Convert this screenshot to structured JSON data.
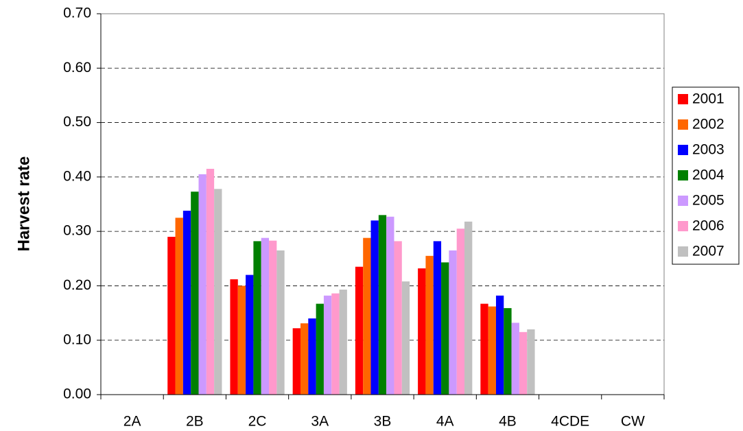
{
  "chart_data": {
    "type": "bar",
    "y_label": "Harvest rate",
    "categories": [
      "2A",
      "2B",
      "2C",
      "3A",
      "3B",
      "4A",
      "4B",
      "4CDE",
      "CW"
    ],
    "series": [
      {
        "name": "2001",
        "color": "#ff0000",
        "values": [
          null,
          0.29,
          0.212,
          0.122,
          0.235,
          0.232,
          0.167,
          null,
          null
        ]
      },
      {
        "name": "2002",
        "color": "#ff6600",
        "values": [
          null,
          0.325,
          0.2,
          0.131,
          0.288,
          0.255,
          0.162,
          null,
          null
        ]
      },
      {
        "name": "2003",
        "color": "#0000ff",
        "values": [
          null,
          0.338,
          0.22,
          0.14,
          0.32,
          0.282,
          0.182,
          null,
          null
        ]
      },
      {
        "name": "2004",
        "color": "#008000",
        "values": [
          null,
          0.373,
          0.282,
          0.167,
          0.33,
          0.243,
          0.159,
          null,
          null
        ]
      },
      {
        "name": "2005",
        "color": "#cc99ff",
        "values": [
          null,
          0.405,
          0.288,
          0.182,
          0.327,
          0.265,
          0.132,
          null,
          null
        ]
      },
      {
        "name": "2006",
        "color": "#ff99cc",
        "values": [
          null,
          0.415,
          0.283,
          0.186,
          0.282,
          0.305,
          0.115,
          null,
          null
        ]
      },
      {
        "name": "2007",
        "color": "#c0c0c0",
        "values": [
          null,
          0.378,
          0.265,
          0.193,
          0.208,
          0.318,
          0.12,
          null,
          null
        ]
      }
    ],
    "ylim": [
      0,
      0.7
    ],
    "yticks": [
      {
        "value": 0,
        "label": "0.00"
      },
      {
        "value": 0.1,
        "label": "0.10"
      },
      {
        "value": 0.2,
        "label": "0.20"
      },
      {
        "value": 0.3,
        "label": "0.30"
      },
      {
        "value": 0.4,
        "label": "0.40"
      },
      {
        "value": 0.5,
        "label": "0.50"
      },
      {
        "value": 0.6,
        "label": "0.60"
      },
      {
        "value": 0.7,
        "label": "0.70"
      }
    ],
    "grid": true,
    "legend": "right"
  }
}
